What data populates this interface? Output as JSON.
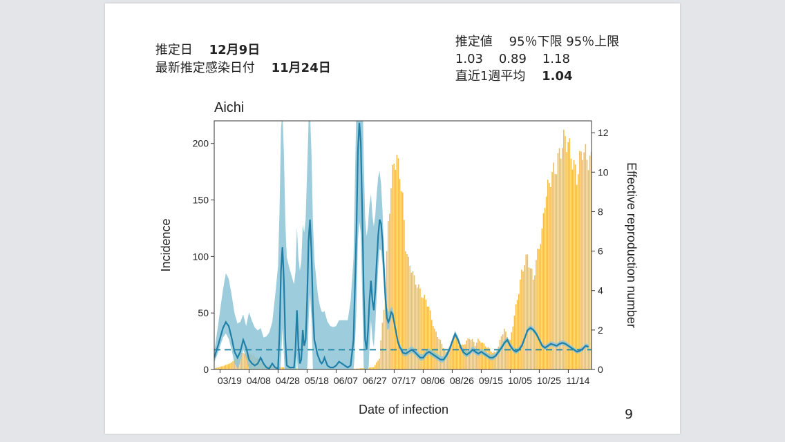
{
  "header_left": {
    "date_label": "推定日",
    "date_value": "12月9日",
    "latest_label": "最新推定感染日付",
    "latest_value": "11月24日"
  },
  "header_right": {
    "col1": "推定値",
    "col2": "95％下限",
    "col3": "95％上限",
    "v1": "1.03",
    "v2": "0.89",
    "v3": "1.18",
    "avg_label": "直近1週平均",
    "avg_value": "1.04"
  },
  "page_number": "9",
  "colors": {
    "bars": "#f6bd4b",
    "band": "#8cc4d6",
    "line": "#1f7fa6",
    "dashed": "#2a8aa8"
  },
  "chart_data": {
    "type": "bar+line",
    "title": "Aichi",
    "xlabel": "Date of infection",
    "ylabel": "Incidence",
    "ylabel_right": "Effective reproduction number",
    "ylim": [
      0,
      220
    ],
    "ylim_right": [
      0,
      12.6
    ],
    "yticks": [
      0,
      50,
      100,
      150,
      200
    ],
    "yticks_right": [
      0,
      2,
      4,
      6,
      8,
      10,
      12
    ],
    "xlim": [
      0,
      260
    ],
    "xticks": [
      {
        "x": 4,
        "label": "03/19"
      },
      {
        "x": 24,
        "label": "04/08"
      },
      {
        "x": 44,
        "label": "04/28"
      },
      {
        "x": 64,
        "label": "05/18"
      },
      {
        "x": 84,
        "label": "06/07"
      },
      {
        "x": 104,
        "label": "06/27"
      },
      {
        "x": 124,
        "label": "07/17"
      },
      {
        "x": 144,
        "label": "08/06"
      },
      {
        "x": 164,
        "label": "08/26"
      },
      {
        "x": 184,
        "label": "09/15"
      },
      {
        "x": 204,
        "label": "10/05"
      },
      {
        "x": 224,
        "label": "10/25"
      },
      {
        "x": 244,
        "label": "11/14"
      }
    ],
    "reference_line_right": 1,
    "incidence_knots": [
      [
        0,
        1
      ],
      [
        6,
        3
      ],
      [
        12,
        6
      ],
      [
        18,
        14
      ],
      [
        24,
        15
      ],
      [
        30,
        10
      ],
      [
        36,
        4
      ],
      [
        42,
        2
      ],
      [
        48,
        2
      ],
      [
        54,
        1
      ],
      [
        60,
        1
      ],
      [
        70,
        0
      ],
      [
        80,
        1
      ],
      [
        90,
        0
      ],
      [
        100,
        1
      ],
      [
        110,
        2
      ],
      [
        114,
        10
      ],
      [
        118,
        70
      ],
      [
        120,
        130
      ],
      [
        122,
        160
      ],
      [
        124,
        185
      ],
      [
        126,
        185
      ],
      [
        128,
        175
      ],
      [
        130,
        150
      ],
      [
        132,
        110
      ],
      [
        134,
        95
      ],
      [
        136,
        90
      ],
      [
        138,
        80
      ],
      [
        140,
        75
      ],
      [
        142,
        70
      ],
      [
        144,
        64
      ],
      [
        146,
        62
      ],
      [
        148,
        55
      ],
      [
        150,
        45
      ],
      [
        152,
        35
      ],
      [
        154,
        30
      ],
      [
        156,
        25
      ],
      [
        158,
        20
      ],
      [
        160,
        15
      ],
      [
        162,
        18
      ],
      [
        164,
        25
      ],
      [
        166,
        30
      ],
      [
        168,
        25
      ],
      [
        170,
        20
      ],
      [
        172,
        22
      ],
      [
        174,
        25
      ],
      [
        176,
        28
      ],
      [
        178,
        26
      ],
      [
        180,
        22
      ],
      [
        182,
        26
      ],
      [
        184,
        25
      ],
      [
        186,
        22
      ],
      [
        188,
        20
      ],
      [
        190,
        18
      ],
      [
        192,
        15
      ],
      [
        194,
        15
      ],
      [
        196,
        20
      ],
      [
        198,
        30
      ],
      [
        200,
        35
      ],
      [
        202,
        30
      ],
      [
        204,
        25
      ],
      [
        206,
        40
      ],
      [
        208,
        55
      ],
      [
        210,
        70
      ],
      [
        212,
        85
      ],
      [
        214,
        95
      ],
      [
        216,
        100
      ],
      [
        218,
        90
      ],
      [
        220,
        80
      ],
      [
        222,
        95
      ],
      [
        224,
        110
      ],
      [
        226,
        120
      ],
      [
        228,
        150
      ],
      [
        230,
        160
      ],
      [
        232,
        170
      ],
      [
        234,
        175
      ],
      [
        236,
        180
      ],
      [
        238,
        190
      ],
      [
        240,
        200
      ],
      [
        242,
        205
      ],
      [
        244,
        200
      ],
      [
        246,
        190
      ],
      [
        248,
        180
      ],
      [
        250,
        170
      ],
      [
        252,
        185
      ],
      [
        254,
        195
      ],
      [
        256,
        190
      ],
      [
        258,
        185
      ]
    ],
    "rt_knots": [
      [
        0,
        0.6
      ],
      [
        3,
        1.3
      ],
      [
        6,
        2.1
      ],
      [
        8,
        2.4
      ],
      [
        10,
        2.2
      ],
      [
        12,
        1.6
      ],
      [
        14,
        0.9
      ],
      [
        16,
        0.6
      ],
      [
        18,
        0.9
      ],
      [
        20,
        1.5
      ],
      [
        22,
        1.1
      ],
      [
        24,
        0.5
      ],
      [
        26,
        0.3
      ],
      [
        28,
        0.2
      ],
      [
        30,
        0.3
      ],
      [
        32,
        0.6
      ],
      [
        34,
        0.3
      ],
      [
        36,
        0.1
      ],
      [
        38,
        0.05
      ],
      [
        40,
        0.3
      ],
      [
        42,
        0.1
      ],
      [
        44,
        0.05
      ],
      [
        45,
        1.8
      ],
      [
        46,
        5.0
      ],
      [
        47,
        6.2
      ],
      [
        48,
        4.5
      ],
      [
        49,
        1.5
      ],
      [
        50,
        0.2
      ],
      [
        52,
        0.1
      ],
      [
        55,
        0.1
      ],
      [
        56,
        1.0
      ],
      [
        57,
        3.0
      ],
      [
        58,
        1.2
      ],
      [
        59,
        0.3
      ],
      [
        60,
        0.5
      ],
      [
        61,
        2.0
      ],
      [
        62,
        1.2
      ],
      [
        63,
        1.5
      ],
      [
        64,
        3.5
      ],
      [
        65,
        6.5
      ],
      [
        66,
        7.6
      ],
      [
        67,
        6.0
      ],
      [
        68,
        3.0
      ],
      [
        69,
        1.5
      ],
      [
        70,
        1.2
      ],
      [
        71,
        0.8
      ],
      [
        72,
        0.6
      ],
      [
        73,
        0.4
      ],
      [
        74,
        0.3
      ],
      [
        75,
        0.4
      ],
      [
        76,
        0.6
      ],
      [
        77,
        0.4
      ],
      [
        78,
        0.2
      ],
      [
        80,
        0.1
      ],
      [
        82,
        0.1
      ],
      [
        84,
        0.2
      ],
      [
        86,
        0.4
      ],
      [
        88,
        0.3
      ],
      [
        90,
        0.2
      ],
      [
        92,
        0.1
      ],
      [
        94,
        0.2
      ],
      [
        96,
        1.5
      ],
      [
        98,
        7.0
      ],
      [
        99,
        11.0
      ],
      [
        100,
        12.5
      ],
      [
        101,
        11.5
      ],
      [
        102,
        8.0
      ],
      [
        103,
        4.0
      ],
      [
        104,
        1.5
      ],
      [
        105,
        1.0
      ],
      [
        106,
        2.0
      ],
      [
        107,
        3.5
      ],
      [
        108,
        4.5
      ],
      [
        109,
        3.5
      ],
      [
        110,
        3.0
      ],
      [
        111,
        4.0
      ],
      [
        112,
        5.5
      ],
      [
        113,
        6.8
      ],
      [
        114,
        7.6
      ],
      [
        115,
        7.4
      ],
      [
        116,
        6.5
      ],
      [
        117,
        5.0
      ],
      [
        118,
        3.6
      ],
      [
        119,
        2.6
      ],
      [
        120,
        2.4
      ],
      [
        121,
        2.6
      ],
      [
        122,
        2.9
      ],
      [
        123,
        2.8
      ],
      [
        124,
        2.4
      ],
      [
        125,
        2.0
      ],
      [
        126,
        1.6
      ],
      [
        127,
        1.3
      ],
      [
        128,
        1.1
      ],
      [
        129,
        1.0
      ],
      [
        130,
        0.85
      ],
      [
        132,
        0.8
      ],
      [
        134,
        0.9
      ],
      [
        136,
        1.0
      ],
      [
        138,
        0.9
      ],
      [
        140,
        0.75
      ],
      [
        142,
        0.6
      ],
      [
        144,
        0.6
      ],
      [
        146,
        0.8
      ],
      [
        148,
        0.9
      ],
      [
        150,
        0.8
      ],
      [
        152,
        0.7
      ],
      [
        154,
        0.6
      ],
      [
        156,
        0.5
      ],
      [
        158,
        0.5
      ],
      [
        160,
        0.7
      ],
      [
        162,
        1.0
      ],
      [
        164,
        1.4
      ],
      [
        166,
        1.8
      ],
      [
        168,
        1.5
      ],
      [
        170,
        1.1
      ],
      [
        172,
        0.85
      ],
      [
        174,
        0.75
      ],
      [
        176,
        0.85
      ],
      [
        178,
        1.0
      ],
      [
        180,
        0.9
      ],
      [
        182,
        0.8
      ],
      [
        184,
        0.9
      ],
      [
        186,
        0.8
      ],
      [
        188,
        0.7
      ],
      [
        190,
        0.6
      ],
      [
        192,
        0.6
      ],
      [
        194,
        0.7
      ],
      [
        196,
        0.9
      ],
      [
        198,
        1.1
      ],
      [
        200,
        1.35
      ],
      [
        202,
        1.5
      ],
      [
        204,
        1.2
      ],
      [
        206,
        1.0
      ],
      [
        208,
        0.9
      ],
      [
        210,
        1.0
      ],
      [
        212,
        1.2
      ],
      [
        214,
        1.6
      ],
      [
        216,
        2.0
      ],
      [
        218,
        2.1
      ],
      [
        220,
        2.0
      ],
      [
        222,
        1.8
      ],
      [
        224,
        1.5
      ],
      [
        226,
        1.2
      ],
      [
        228,
        1.1
      ],
      [
        230,
        1.2
      ],
      [
        232,
        1.3
      ],
      [
        234,
        1.25
      ],
      [
        236,
        1.2
      ],
      [
        238,
        1.3
      ],
      [
        240,
        1.35
      ],
      [
        242,
        1.3
      ],
      [
        244,
        1.2
      ],
      [
        246,
        1.1
      ],
      [
        248,
        1.0
      ],
      [
        250,
        0.9
      ],
      [
        252,
        0.95
      ],
      [
        254,
        1.05
      ],
      [
        256,
        1.2
      ],
      [
        258,
        1.15
      ]
    ],
    "band_half_width_knots": [
      [
        0,
        0.5
      ],
      [
        10,
        1.3
      ],
      [
        20,
        1.0
      ],
      [
        30,
        1.0
      ],
      [
        40,
        1.5
      ],
      [
        44,
        6
      ],
      [
        46,
        9
      ],
      [
        50,
        6
      ],
      [
        56,
        4
      ],
      [
        60,
        6
      ],
      [
        64,
        9
      ],
      [
        68,
        6
      ],
      [
        72,
        3.5
      ],
      [
        76,
        2.5
      ],
      [
        80,
        2.0
      ],
      [
        84,
        1.5
      ],
      [
        88,
        1.5
      ],
      [
        92,
        1.5
      ],
      [
        96,
        4
      ],
      [
        98,
        8
      ],
      [
        100,
        10
      ],
      [
        104,
        7
      ],
      [
        108,
        4
      ],
      [
        112,
        3.5
      ],
      [
        116,
        2.5
      ],
      [
        118,
        1.2
      ],
      [
        122,
        0.5
      ],
      [
        126,
        0.3
      ],
      [
        200,
        0.25
      ],
      [
        258,
        0.2
      ]
    ],
    "band_upper_extra": [
      [
        0,
        0
      ],
      [
        8,
        1.8
      ],
      [
        22,
        0.5
      ],
      [
        24,
        1.8
      ],
      [
        34,
        0.6
      ],
      [
        48,
        2
      ],
      [
        70,
        0.8
      ],
      [
        80,
        0.9
      ],
      [
        92,
        1.5
      ],
      [
        100,
        2
      ],
      [
        110,
        2
      ],
      [
        116,
        0
      ],
      [
        258,
        0
      ]
    ]
  }
}
